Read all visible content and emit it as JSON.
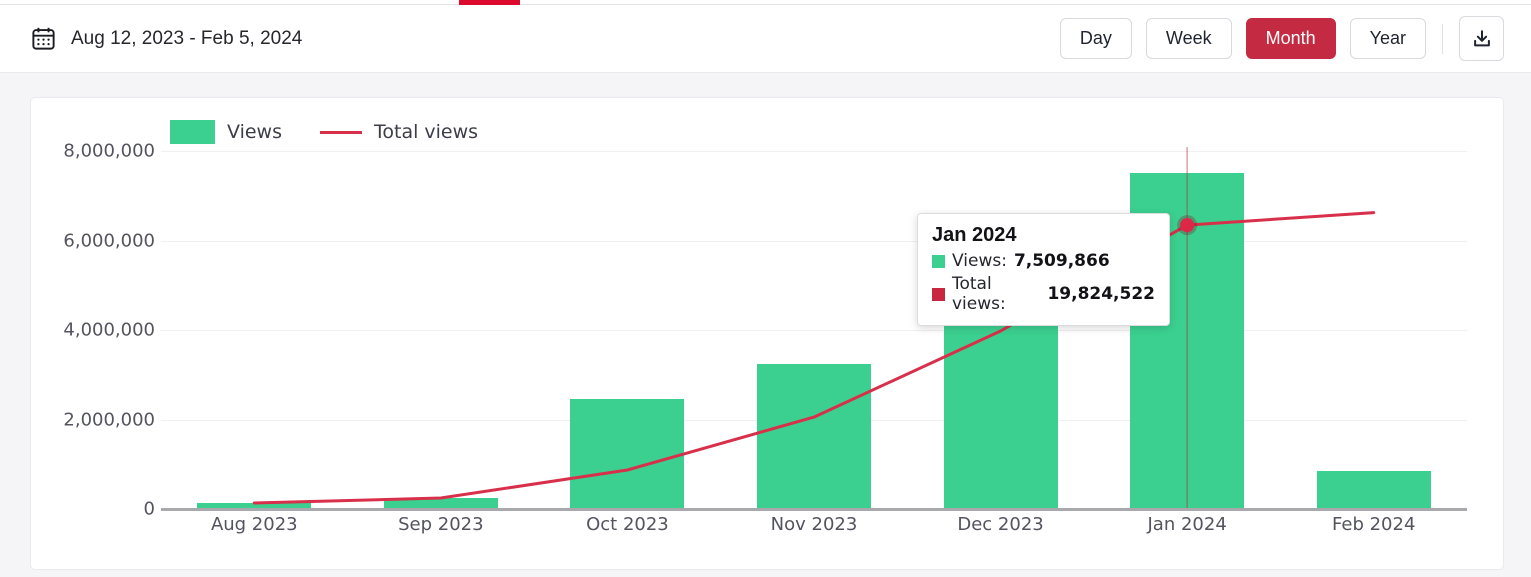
{
  "header": {
    "date_range": "Aug 12, 2023 - Feb 5, 2024",
    "range_buttons": [
      {
        "label": "Day",
        "active": false
      },
      {
        "label": "Week",
        "active": false
      },
      {
        "label": "Month",
        "active": true
      },
      {
        "label": "Year",
        "active": false
      }
    ],
    "icons": {
      "calendar": "calendar-icon",
      "download": "download-icon"
    }
  },
  "colors": {
    "tab_indicator_red": "#dc0a2d",
    "active_button_red": "#c42a41",
    "bar_green": "#3bd08f",
    "line_red": "#d8304a",
    "tooltip_marker_green": "#3bd08f",
    "tooltip_marker_red": "#c8273f"
  },
  "chart_data": {
    "type": "bar",
    "categories": [
      "Aug 2023",
      "Sep 2023",
      "Oct 2023",
      "Nov 2023",
      "Dec 2023",
      "Jan 2024",
      "Feb 2024"
    ],
    "series": [
      {
        "name": "Views",
        "type": "bar",
        "color": "#3bd08f",
        "values": [
          130000,
          240000,
          2450000,
          3240000,
          4510000,
          7509866,
          850000
        ]
      },
      {
        "name": "Total views",
        "type": "line",
        "color": "#d8304a",
        "values": [
          420000,
          770000,
          2720000,
          6420000,
          12430000,
          19824522,
          20700000
        ]
      }
    ],
    "ylim": [
      0,
      8000000
    ],
    "line_hidden_axis_ylim": [
      0,
      25000000
    ],
    "y_ticks": [
      {
        "value": 0,
        "label": "0"
      },
      {
        "value": 2000000,
        "label": "2,000,000"
      },
      {
        "value": 4000000,
        "label": "4,000,000"
      },
      {
        "value": 6000000,
        "label": "6,000,000"
      },
      {
        "value": 8000000,
        "label": "8,000,000"
      }
    ],
    "grid": true,
    "legend_position": "top-left",
    "tooltip": {
      "highlight_index": 5,
      "title": "Jan 2024",
      "rows": [
        {
          "label": "Views:",
          "value": "7,509,866",
          "marker_color": "#3bd08f"
        },
        {
          "label": "Total views:",
          "value": "19,824,522",
          "marker_color": "#c8273f"
        }
      ]
    }
  }
}
